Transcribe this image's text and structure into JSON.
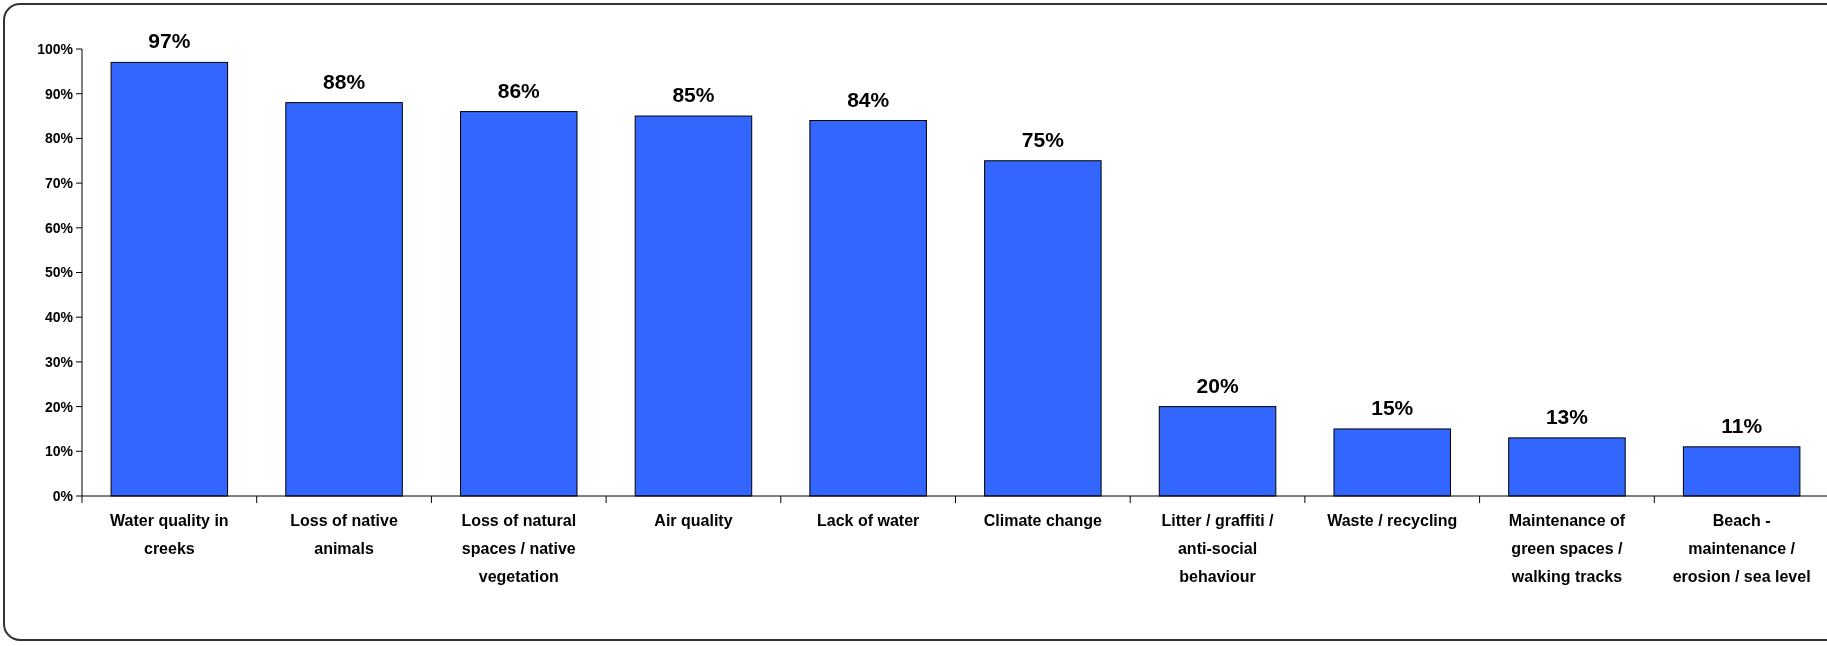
{
  "chart_data": {
    "type": "bar",
    "categories": [
      "Water quality in creeks",
      "Loss of native animals",
      "Loss of natural spaces / native vegetation",
      "Air quality",
      "Lack of water",
      "Climate change",
      "Litter / graffiti / anti-social behaviour",
      "Waste / recycling",
      "Maintenance of green spaces / walking tracks",
      "Beach - maintenance / erosion /  sea level"
    ],
    "values": [
      97,
      88,
      86,
      85,
      84,
      75,
      20,
      15,
      13,
      11
    ],
    "value_labels": [
      "97%",
      "88%",
      "86%",
      "85%",
      "84%",
      "75%",
      "20%",
      "15%",
      "13%",
      "11%"
    ],
    "color": "#3366ff",
    "ylim": [
      0,
      100
    ],
    "yticks": [
      {
        "value": 0,
        "label": "0%"
      },
      {
        "value": 10,
        "label": "10%"
      },
      {
        "value": 20,
        "label": "20%"
      },
      {
        "value": 30,
        "label": "30%"
      },
      {
        "value": 40,
        "label": "40%"
      },
      {
        "value": 50,
        "label": "50%"
      },
      {
        "value": 60,
        "label": "60%"
      },
      {
        "value": 70,
        "label": "70%"
      },
      {
        "value": 80,
        "label": "80%"
      },
      {
        "value": 90,
        "label": "90%"
      },
      {
        "value": 100,
        "label": "100%"
      }
    ],
    "grid": false
  }
}
